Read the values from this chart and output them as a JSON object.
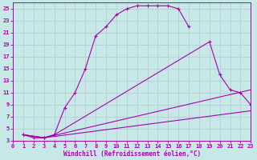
{
  "xlabel": "Windchill (Refroidissement éolien,°C)",
  "bg_color": "#c8e8e8",
  "line_color": "#aa00aa",
  "grid_color": "#aacccc",
  "xlim": [
    0,
    23
  ],
  "ylim": [
    3,
    26
  ],
  "xticks": [
    0,
    1,
    2,
    3,
    4,
    5,
    6,
    7,
    8,
    9,
    10,
    11,
    12,
    13,
    14,
    15,
    16,
    17,
    18,
    19,
    20,
    21,
    22,
    23
  ],
  "yticks": [
    3,
    5,
    7,
    9,
    11,
    13,
    15,
    17,
    19,
    21,
    23,
    25
  ],
  "curves": [
    {
      "x": [
        1,
        2,
        3,
        4,
        5,
        6,
        7,
        8,
        9,
        10,
        11,
        12,
        13,
        14,
        15,
        16,
        17
      ],
      "y": [
        4,
        3.5,
        3.5,
        4,
        8.5,
        11,
        15,
        20.5,
        22,
        24,
        25,
        25.5,
        25.5,
        25.5,
        25.5,
        25,
        22
      ],
      "markers": true
    },
    {
      "x": [
        1,
        3,
        4,
        19,
        20,
        21,
        22,
        23
      ],
      "y": [
        4,
        3.5,
        4,
        19.5,
        14,
        11.5,
        11,
        9
      ],
      "markers": true
    },
    {
      "x": [
        1,
        3,
        23
      ],
      "y": [
        4,
        3.5,
        11.5
      ],
      "markers": false
    },
    {
      "x": [
        1,
        3,
        23
      ],
      "y": [
        4,
        3.5,
        8
      ],
      "markers": false
    }
  ]
}
